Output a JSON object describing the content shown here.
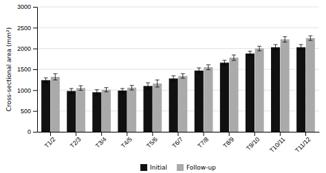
{
  "chart_data": {
    "type": "bar",
    "categories": [
      "T1/2",
      "T2/3",
      "T3/4",
      "T4/5",
      "T5/6",
      "T6/7",
      "T7/8",
      "T8/9",
      "T9/10",
      "T10/11",
      "T11/12"
    ],
    "series": [
      {
        "name": "Initial",
        "color": "#111111",
        "values": [
          1240,
          980,
          950,
          990,
          1100,
          1280,
          1470,
          1660,
          1880,
          2030,
          2030
        ],
        "errors": [
          55,
          60,
          60,
          50,
          75,
          65,
          65,
          55,
          55,
          65,
          65
        ]
      },
      {
        "name": "Follow-up",
        "color": "#aaaaaa",
        "values": [
          1320,
          1050,
          1010,
          1060,
          1160,
          1340,
          1550,
          1780,
          2000,
          2220,
          2250
        ],
        "errors": [
          75,
          55,
          50,
          55,
          85,
          55,
          60,
          65,
          55,
          65,
          55
        ]
      }
    ],
    "ylabel": "Cross-sectional area (mm²)",
    "ylim": [
      0,
      3000
    ],
    "yticks": [
      0,
      500,
      1000,
      1500,
      2000,
      2500,
      3000
    ],
    "grid": true,
    "legend": "bottom"
  }
}
